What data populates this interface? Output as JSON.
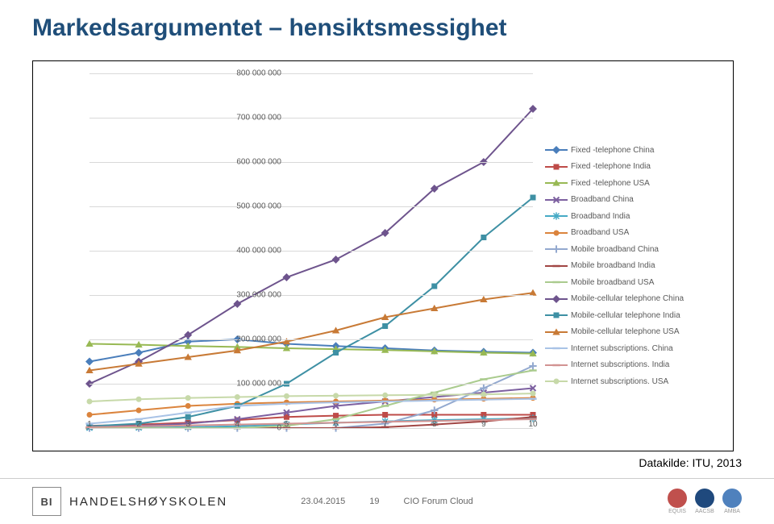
{
  "title": "Markedsargumentet – hensiktsmessighet",
  "source": "Datakilde: ITU, 2013",
  "footer": {
    "logo_text": "BI",
    "school": "HANDELSHØYSKOLEN",
    "date": "23.04.2015",
    "page": "19",
    "event": "CIO Forum Cloud",
    "accreditations": [
      "EQUIS",
      "AACSB",
      "AMBA"
    ]
  },
  "chart": {
    "type": "line",
    "ylim": [
      0,
      800000000
    ],
    "ytick_step": 100000000,
    "y_ticks": [
      {
        "v": 0,
        "label": "0"
      },
      {
        "v": 100000000,
        "label": "100 000 000"
      },
      {
        "v": 200000000,
        "label": "200 000 000"
      },
      {
        "v": 300000000,
        "label": "300 000 000"
      },
      {
        "v": 400000000,
        "label": "400 000 000"
      },
      {
        "v": 500000000,
        "label": "500 000 000"
      },
      {
        "v": 600000000,
        "label": "600 000 000"
      },
      {
        "v": 700000000,
        "label": "700 000 000"
      },
      {
        "v": 800000000,
        "label": "800 000 000"
      }
    ],
    "x_ticks": [
      1,
      2,
      3,
      4,
      5,
      6,
      7,
      8,
      9,
      10
    ],
    "grid_color": "#d9d9d9",
    "background_color": "#ffffff",
    "label_fontsize": 10,
    "legend_fontsize": 10,
    "series": [
      {
        "name": "Fixed -telephone China",
        "color": "#4a7ebb",
        "marker": "diamond",
        "data": [
          150000000,
          170000000,
          195000000,
          200000000,
          190000000,
          185000000,
          180000000,
          175000000,
          172000000,
          170000000
        ]
      },
      {
        "name": "Fixed -telephone India",
        "color": "#be4b48",
        "marker": "square",
        "data": [
          5000000,
          8000000,
          12000000,
          18000000,
          25000000,
          28000000,
          30000000,
          30000000,
          30000000,
          30000000
        ]
      },
      {
        "name": "Fixed -telephone USA",
        "color": "#98b954",
        "marker": "triangle",
        "data": [
          190000000,
          188000000,
          185000000,
          183000000,
          180000000,
          178000000,
          176000000,
          173000000,
          170000000,
          168000000
        ]
      },
      {
        "name": "Broadband China",
        "color": "#7d60a0",
        "marker": "x",
        "data": [
          2000000,
          5000000,
          10000000,
          20000000,
          35000000,
          50000000,
          60000000,
          70000000,
          80000000,
          90000000
        ]
      },
      {
        "name": "Broadband India",
        "color": "#46aac5",
        "marker": "star",
        "data": [
          500000,
          1000000,
          2000000,
          4000000,
          8000000,
          12000000,
          15000000,
          18000000,
          20000000,
          22000000
        ]
      },
      {
        "name": "Broadband USA",
        "color": "#db843d",
        "marker": "circle",
        "data": [
          30000000,
          40000000,
          50000000,
          55000000,
          58000000,
          60000000,
          62000000,
          64000000,
          66000000,
          68000000
        ]
      },
      {
        "name": "Mobile broadband China",
        "color": "#93a9cf",
        "marker": "plus",
        "data": [
          0,
          0,
          0,
          0,
          0,
          0,
          10000000,
          40000000,
          90000000,
          140000000
        ]
      },
      {
        "name": "Mobile broadband India",
        "color": "#a14644",
        "marker": "dash",
        "data": [
          0,
          0,
          0,
          0,
          0,
          0,
          2000000,
          8000000,
          15000000,
          25000000
        ]
      },
      {
        "name": "Mobile broadband USA",
        "color": "#aacb8e",
        "marker": "dash",
        "data": [
          0,
          0,
          0,
          0,
          5000000,
          20000000,
          50000000,
          80000000,
          110000000,
          130000000
        ]
      },
      {
        "name": "Mobile-cellular telephone China",
        "color": "#6e548d",
        "marker": "diamond",
        "data": [
          100000000,
          150000000,
          210000000,
          280000000,
          340000000,
          380000000,
          440000000,
          540000000,
          600000000,
          720000000
        ]
      },
      {
        "name": "Mobile-cellular telephone India",
        "color": "#3e90a4",
        "marker": "square",
        "data": [
          4000000,
          10000000,
          25000000,
          50000000,
          100000000,
          170000000,
          230000000,
          320000000,
          430000000,
          520000000
        ]
      },
      {
        "name": "Mobile-cellular telephone USA",
        "color": "#c87a36",
        "marker": "triangle",
        "data": [
          130000000,
          145000000,
          160000000,
          175000000,
          195000000,
          220000000,
          250000000,
          270000000,
          290000000,
          305000000
        ]
      },
      {
        "name": "Internet subscriptions. China",
        "color": "#a9c3e6",
        "marker": "dash",
        "data": [
          10000000,
          20000000,
          35000000,
          50000000,
          55000000,
          58000000,
          60000000,
          62000000,
          64000000,
          66000000
        ]
      },
      {
        "name": "Internet subscriptions. India",
        "color": "#d29392",
        "marker": "dash",
        "data": [
          2000000,
          4000000,
          6000000,
          8000000,
          10000000,
          12000000,
          14000000,
          16000000,
          18000000,
          20000000
        ]
      },
      {
        "name": "Internet subscriptions. USA",
        "color": "#c7d9a9",
        "marker": "circle",
        "data": [
          60000000,
          65000000,
          68000000,
          70000000,
          72000000,
          73000000,
          74000000,
          75000000,
          76000000,
          78000000
        ]
      }
    ]
  }
}
